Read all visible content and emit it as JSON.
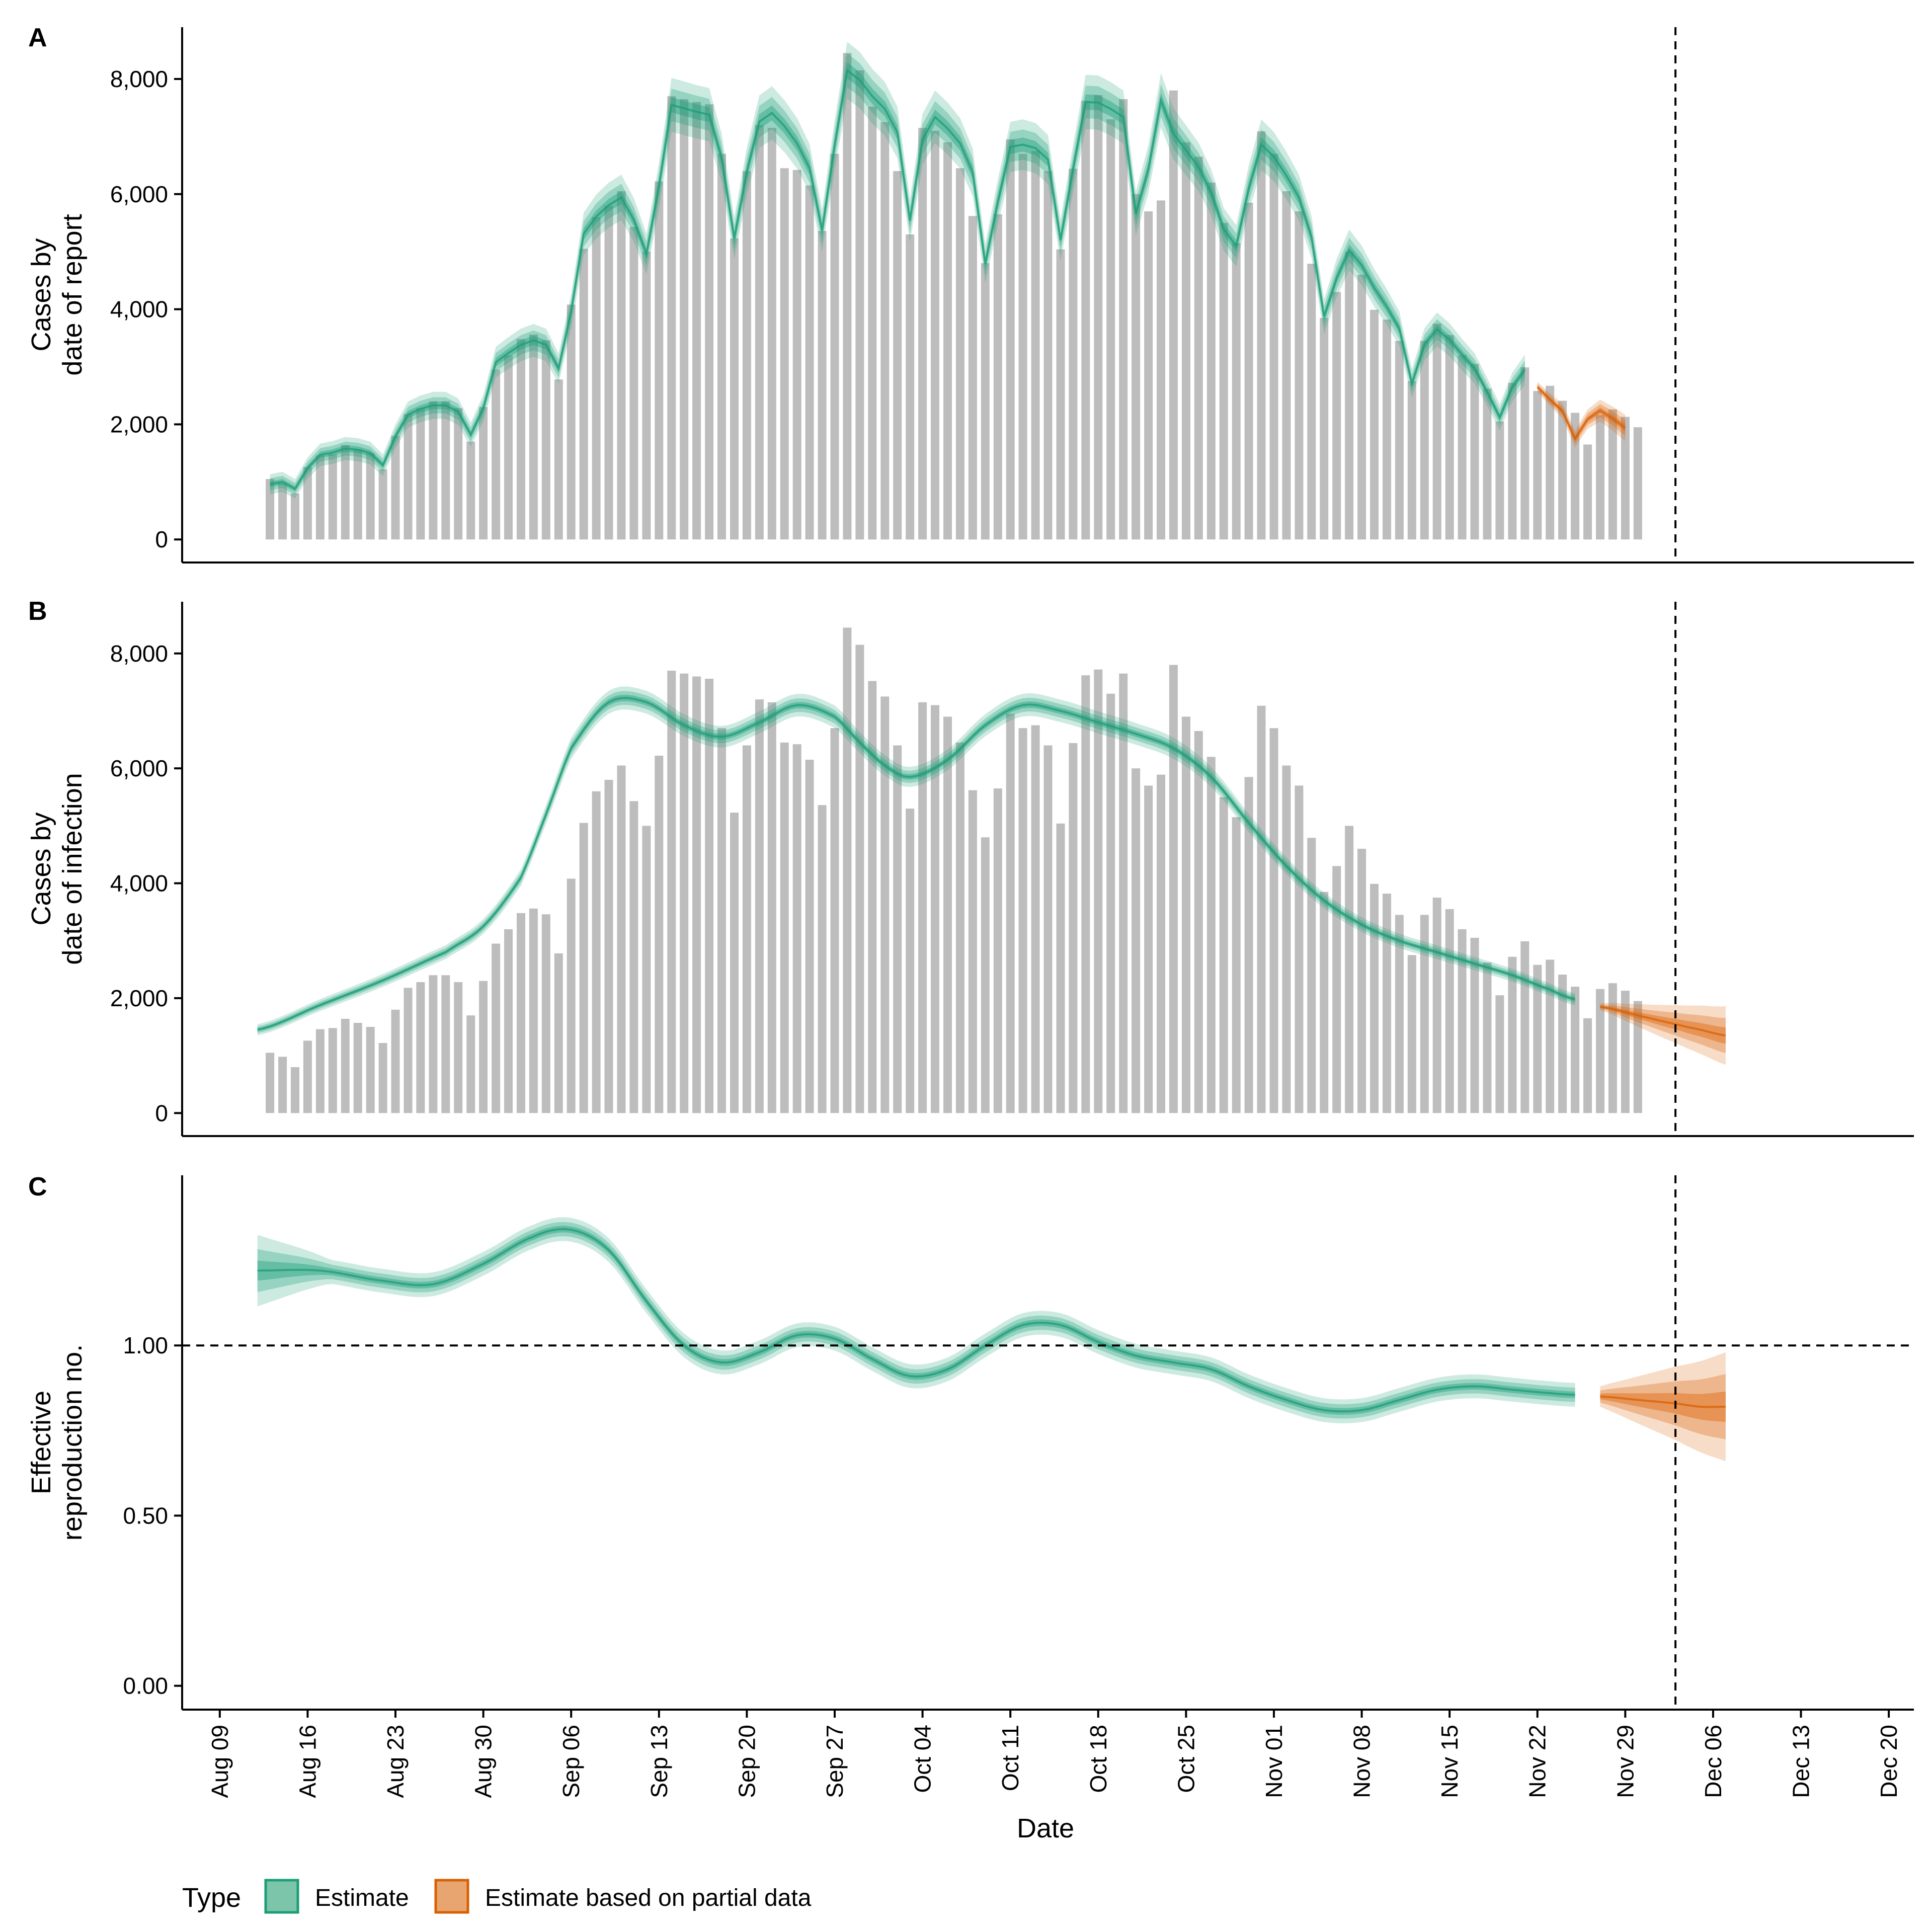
{
  "chart_data": [
    {
      "panel": "A",
      "type": "bar",
      "ylabel": [
        "Cases by",
        "date of report"
      ],
      "yticks": [
        0,
        2000,
        4000,
        6000,
        8000
      ],
      "ytick_labels": [
        "0",
        "2,000",
        "4,000",
        "6,000",
        "8,000"
      ],
      "ylim": [
        -400,
        8900
      ],
      "start_date": "2020-08-13",
      "bars": [
        1050,
        980,
        800,
        1260,
        1460,
        1480,
        1640,
        1570,
        1500,
        1220,
        1800,
        2180,
        2280,
        2400,
        2400,
        2280,
        1700,
        2300,
        2950,
        3200,
        3480,
        3560,
        3460,
        2780,
        4080,
        5050,
        5600,
        5800,
        6050,
        5430,
        5000,
        6220,
        7700,
        7650,
        7600,
        7560,
        6700,
        5230,
        6400,
        7200,
        7150,
        6450,
        6420,
        6150,
        5360,
        6700,
        8450,
        8150,
        7520,
        7250,
        6400,
        5300,
        7150,
        7100,
        6900,
        6450,
        5620,
        4800,
        5650,
        6950,
        6700,
        6750,
        6400,
        5040,
        6440,
        7620,
        7720,
        7300,
        7650,
        6000,
        5700,
        5890,
        7800,
        6900,
        6650,
        6200,
        5500,
        5150,
        5850,
        7090,
        6700,
        6050,
        5700,
        4790,
        3850,
        4300,
        5000,
        4600,
        3990,
        3820,
        3450,
        2750,
        3450,
        3750,
        3550,
        3200,
        3050,
        2620,
        2050,
        2720,
        2990,
        2580,
        2670,
        2410,
        2200,
        1650,
        2160,
        2260,
        2130,
        1950
      ],
      "estimate_start": "2020-08-13",
      "estimate_median": [
        960,
        1000,
        880,
        1240,
        1470,
        1510,
        1580,
        1560,
        1500,
        1290,
        1790,
        2170,
        2270,
        2330,
        2330,
        2220,
        1820,
        2280,
        3080,
        3240,
        3380,
        3460,
        3380,
        2970,
        3960,
        5310,
        5610,
        5810,
        5940,
        5550,
        4960,
        6140,
        7550,
        7490,
        7430,
        7380,
        6620,
        5230,
        6390,
        7260,
        7410,
        7180,
        6880,
        6450,
        5370,
        6850,
        8150,
        7980,
        7700,
        7480,
        7070,
        5540,
        6950,
        7340,
        7140,
        6880,
        6380,
        4790,
        5860,
        6820,
        6860,
        6800,
        6600,
        5200,
        6440,
        7600,
        7590,
        7480,
        7340,
        5660,
        6430,
        7630,
        7050,
        6760,
        6470,
        6030,
        5390,
        5100,
        6100,
        6860,
        6650,
        6320,
        5940,
        5250,
        3870,
        4540,
        5030,
        4760,
        4370,
        4040,
        3660,
        2710,
        3390,
        3650,
        3470,
        3210,
        2970,
        2560,
        2120,
        2650,
        2950
      ],
      "partial_median": [
        2650,
        2430,
        2230,
        1750,
        2090,
        2240,
        2100,
        1940
      ],
      "vline_date": "2020-12-03"
    },
    {
      "panel": "B",
      "type": "bar",
      "ylabel": [
        "Cases by",
        "date of infection"
      ],
      "yticks": [
        0,
        2000,
        4000,
        6000,
        8000
      ],
      "ytick_labels": [
        "0",
        "2,000",
        "4,000",
        "6,000",
        "8,000"
      ],
      "ylim": [
        -400,
        8900
      ],
      "start_date": "2020-08-13",
      "bars_same_as": "A",
      "estimate_start": "2020-08-12",
      "estimate_knots": [
        [
          0,
          1450
        ],
        [
          5,
          1880
        ],
        [
          10,
          2310
        ],
        [
          15,
          2800
        ],
        [
          18,
          3250
        ],
        [
          21,
          4100
        ],
        [
          23,
          5200
        ],
        [
          25,
          6350
        ],
        [
          28,
          7150
        ],
        [
          31,
          7150
        ],
        [
          34,
          6750
        ],
        [
          37,
          6550
        ],
        [
          40,
          6800
        ],
        [
          43,
          7100
        ],
        [
          46,
          6900
        ],
        [
          48,
          6450
        ],
        [
          50,
          6050
        ],
        [
          52,
          5850
        ],
        [
          55,
          6150
        ],
        [
          58,
          6750
        ],
        [
          61,
          7100
        ],
        [
          64,
          7000
        ],
        [
          67,
          6800
        ],
        [
          70,
          6600
        ],
        [
          73,
          6350
        ],
        [
          76,
          5850
        ],
        [
          79,
          5050
        ],
        [
          82,
          4300
        ],
        [
          85,
          3700
        ],
        [
          88,
          3280
        ],
        [
          91,
          3000
        ],
        [
          94,
          2800
        ],
        [
          97,
          2600
        ],
        [
          100,
          2400
        ],
        [
          103,
          2150
        ],
        [
          105,
          1980
        ]
      ],
      "partial_knots": [
        [
          107,
          1850
        ],
        [
          110,
          1700
        ],
        [
          113,
          1550
        ],
        [
          115,
          1450
        ],
        [
          117,
          1350
        ]
      ],
      "vline_date": "2020-12-03"
    },
    {
      "panel": "C",
      "type": "line",
      "ylabel": [
        "Effective",
        "reproduction no."
      ],
      "yticks": [
        0,
        0.5,
        1.0
      ],
      "ytick_labels": [
        "0.00",
        "0.50",
        "1.00"
      ],
      "ylim": [
        -0.07,
        1.5
      ],
      "hline": 1.0,
      "estimate_start": "2020-08-12",
      "estimate_knots": [
        [
          0,
          1.22
        ],
        [
          5,
          1.22
        ],
        [
          10,
          1.19
        ],
        [
          14,
          1.18
        ],
        [
          18,
          1.24
        ],
        [
          22,
          1.32
        ],
        [
          25,
          1.34
        ],
        [
          28,
          1.28
        ],
        [
          31,
          1.13
        ],
        [
          34,
          1.0
        ],
        [
          37,
          0.95
        ],
        [
          40,
          0.98
        ],
        [
          43,
          1.03
        ],
        [
          46,
          1.02
        ],
        [
          49,
          0.96
        ],
        [
          52,
          0.91
        ],
        [
          55,
          0.93
        ],
        [
          58,
          1.0
        ],
        [
          61,
          1.06
        ],
        [
          64,
          1.06
        ],
        [
          67,
          1.01
        ],
        [
          70,
          0.97
        ],
        [
          73,
          0.95
        ],
        [
          76,
          0.93
        ],
        [
          79,
          0.88
        ],
        [
          82,
          0.84
        ],
        [
          85,
          0.81
        ],
        [
          88,
          0.81
        ],
        [
          91,
          0.84
        ],
        [
          94,
          0.87
        ],
        [
          97,
          0.88
        ],
        [
          100,
          0.87
        ],
        [
          103,
          0.86
        ],
        [
          105,
          0.855
        ]
      ],
      "partial_knots": [
        [
          107,
          0.85
        ],
        [
          110,
          0.84
        ],
        [
          113,
          0.83
        ],
        [
          115,
          0.82
        ],
        [
          117,
          0.82
        ]
      ],
      "vline_date": "2020-12-03"
    }
  ],
  "xaxis": {
    "label": "Date",
    "range_start": "2020-08-06",
    "range_end": "2020-12-22",
    "ticks": [
      {
        "date": "2020-08-09",
        "label": "Aug 09"
      },
      {
        "date": "2020-08-16",
        "label": "Aug 16"
      },
      {
        "date": "2020-08-23",
        "label": "Aug 23"
      },
      {
        "date": "2020-08-30",
        "label": "Aug 30"
      },
      {
        "date": "2020-09-06",
        "label": "Sep 06"
      },
      {
        "date": "2020-09-13",
        "label": "Sep 13"
      },
      {
        "date": "2020-09-20",
        "label": "Sep 20"
      },
      {
        "date": "2020-09-27",
        "label": "Sep 27"
      },
      {
        "date": "2020-10-04",
        "label": "Oct 04"
      },
      {
        "date": "2020-10-11",
        "label": "Oct 11"
      },
      {
        "date": "2020-10-18",
        "label": "Oct 18"
      },
      {
        "date": "2020-10-25",
        "label": "Oct 25"
      },
      {
        "date": "2020-11-01",
        "label": "Nov 01"
      },
      {
        "date": "2020-11-08",
        "label": "Nov 08"
      },
      {
        "date": "2020-11-15",
        "label": "Nov 15"
      },
      {
        "date": "2020-11-22",
        "label": "Nov 22"
      },
      {
        "date": "2020-11-29",
        "label": "Nov 29"
      },
      {
        "date": "2020-12-06",
        "label": "Dec 06"
      },
      {
        "date": "2020-12-13",
        "label": "Dec 13"
      },
      {
        "date": "2020-12-20",
        "label": "Dec 20"
      }
    ]
  },
  "legend": {
    "title": "Type",
    "placement": "bottom-left",
    "items": [
      {
        "label": "Estimate",
        "fill": "#7cc5ab",
        "stroke": "#1b9e77"
      },
      {
        "label": "Estimate based on partial data",
        "fill": "#e8a56f",
        "stroke": "#d95f02"
      }
    ]
  },
  "colors": {
    "bars": "#bdbdbd",
    "estimate": "#1b9e77",
    "partial": "#d95f02"
  }
}
